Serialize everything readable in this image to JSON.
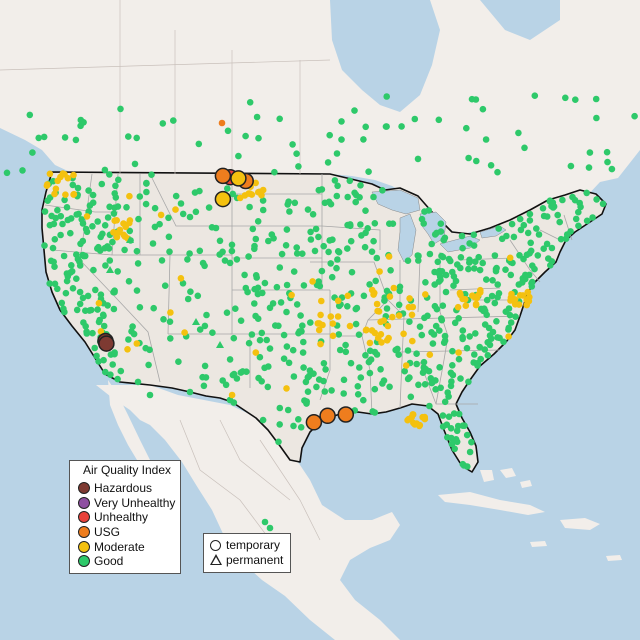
{
  "legend_aqi": {
    "title": "Air Quality Index",
    "items": [
      {
        "label": "Hazardous",
        "color": "#7e3a32"
      },
      {
        "label": "Very Unhealthy",
        "color": "#8e4fa1"
      },
      {
        "label": "Unhealthy",
        "color": "#e8423b"
      },
      {
        "label": "USG",
        "color": "#ee7d1e"
      },
      {
        "label": "Moderate",
        "color": "#f4c10f"
      },
      {
        "label": "Good",
        "color": "#2ec96a"
      }
    ]
  },
  "legend_type": {
    "items": [
      {
        "label": "temporary",
        "shape": "circle"
      },
      {
        "label": "permanent",
        "shape": "triangle"
      }
    ]
  },
  "colors": {
    "water": "#b9d3e6",
    "land": "#f2eeea",
    "usa": "#ece7e1",
    "state_border": "#a7a7a7",
    "country_border": "#111111"
  },
  "sensors": [
    {
      "level": "hazardous",
      "lon": -117.9,
      "lat": 35.9
    },
    {
      "level": "hazardous",
      "lon": -117.8,
      "lat": 35.7
    },
    {
      "level": "unhealthy",
      "lon": -104.2,
      "lat": 48.6
    },
    {
      "level": "usg",
      "lon": -105.0,
      "lat": 48.7
    },
    {
      "level": "usg",
      "lon": -102.5,
      "lat": 48.3
    },
    {
      "level": "moderate",
      "lon": -103.3,
      "lat": 48.5
    },
    {
      "level": "moderate",
      "lon": -105.0,
      "lat": 46.9
    },
    {
      "level": "usg",
      "lon": -95.0,
      "lat": 29.6
    },
    {
      "level": "usg",
      "lon": -93.5,
      "lat": 30.1
    },
    {
      "level": "usg",
      "lon": -91.5,
      "lat": 30.2
    }
  ]
}
